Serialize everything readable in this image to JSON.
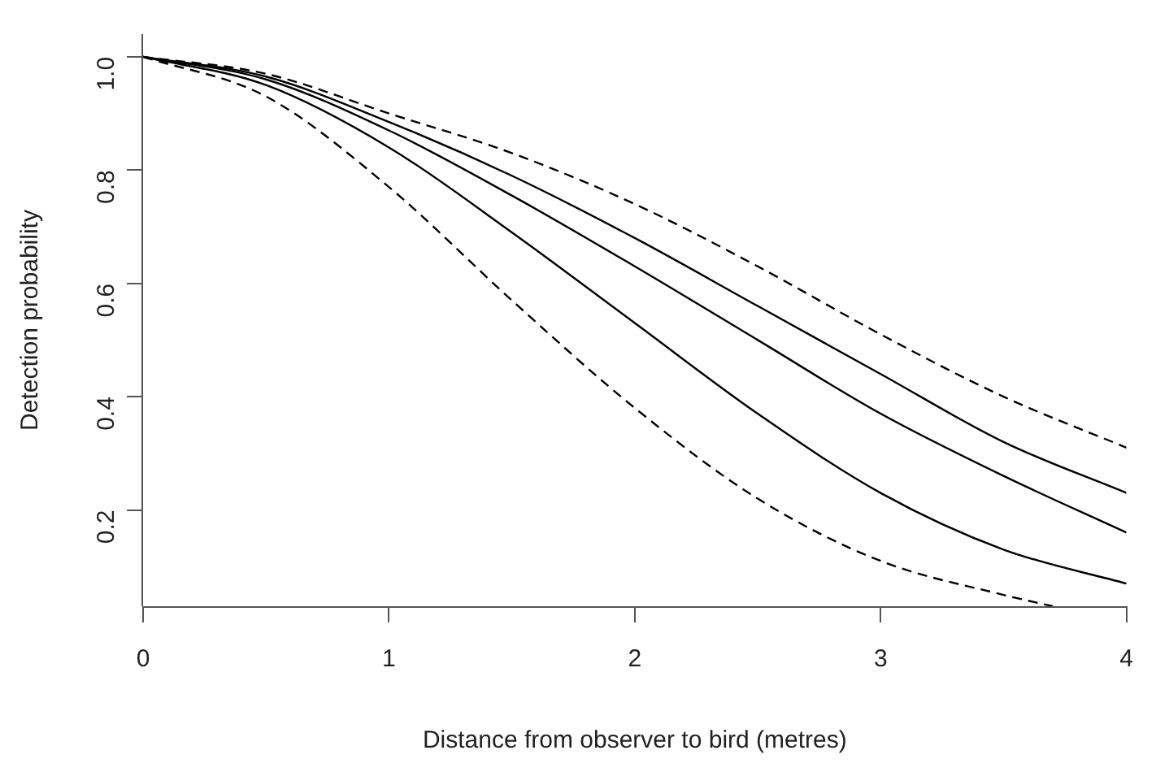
{
  "chart_data": {
    "type": "line",
    "xlabel": "Distance from observer to bird (metres)",
    "ylabel": "Detection probability",
    "xlim": [
      0,
      4
    ],
    "xticks": [
      0,
      1,
      2,
      3,
      4
    ],
    "ylim": [
      0.03,
      1.04
    ],
    "yticks": [
      {
        "value": 0.2,
        "label": "0.2"
      },
      {
        "value": 0.4,
        "label": "0.4"
      },
      {
        "value": 0.6,
        "label": "0.6"
      },
      {
        "value": 0.8,
        "label": "0.8"
      },
      {
        "value": 1,
        "label": "1.0"
      }
    ],
    "grid": false,
    "legend": false,
    "marker": "none",
    "x": [
      0,
      0.5,
      1,
      1.5,
      2,
      2.5,
      3,
      3.5,
      4
    ],
    "series": [
      {
        "color": "#000000",
        "line_style": "dashed",
        "values": [
          1,
          0.97,
          0.9,
          0.83,
          0.74,
          0.63,
          0.51,
          0.4,
          0.31
        ]
      },
      {
        "color": "#000000",
        "line_style": "solid",
        "values": [
          1,
          0.965,
          0.885,
          0.79,
          0.68,
          0.56,
          0.44,
          0.32,
          0.23
        ]
      },
      {
        "color": "#000000",
        "line_style": "solid",
        "values": [
          1,
          0.96,
          0.87,
          0.755,
          0.63,
          0.5,
          0.37,
          0.26,
          0.16
        ]
      },
      {
        "color": "#000000",
        "line_style": "solid",
        "values": [
          1,
          0.95,
          0.84,
          0.69,
          0.53,
          0.37,
          0.23,
          0.13,
          0.07
        ]
      },
      {
        "color": "#000000",
        "line_style": "dashed",
        "x": [
          0,
          0.5,
          1,
          1.5,
          2,
          2.5,
          3,
          3.5,
          3.7
        ],
        "values": [
          1,
          0.93,
          0.77,
          0.57,
          0.38,
          0.22,
          0.11,
          0.05,
          0.03
        ]
      }
    ]
  }
}
